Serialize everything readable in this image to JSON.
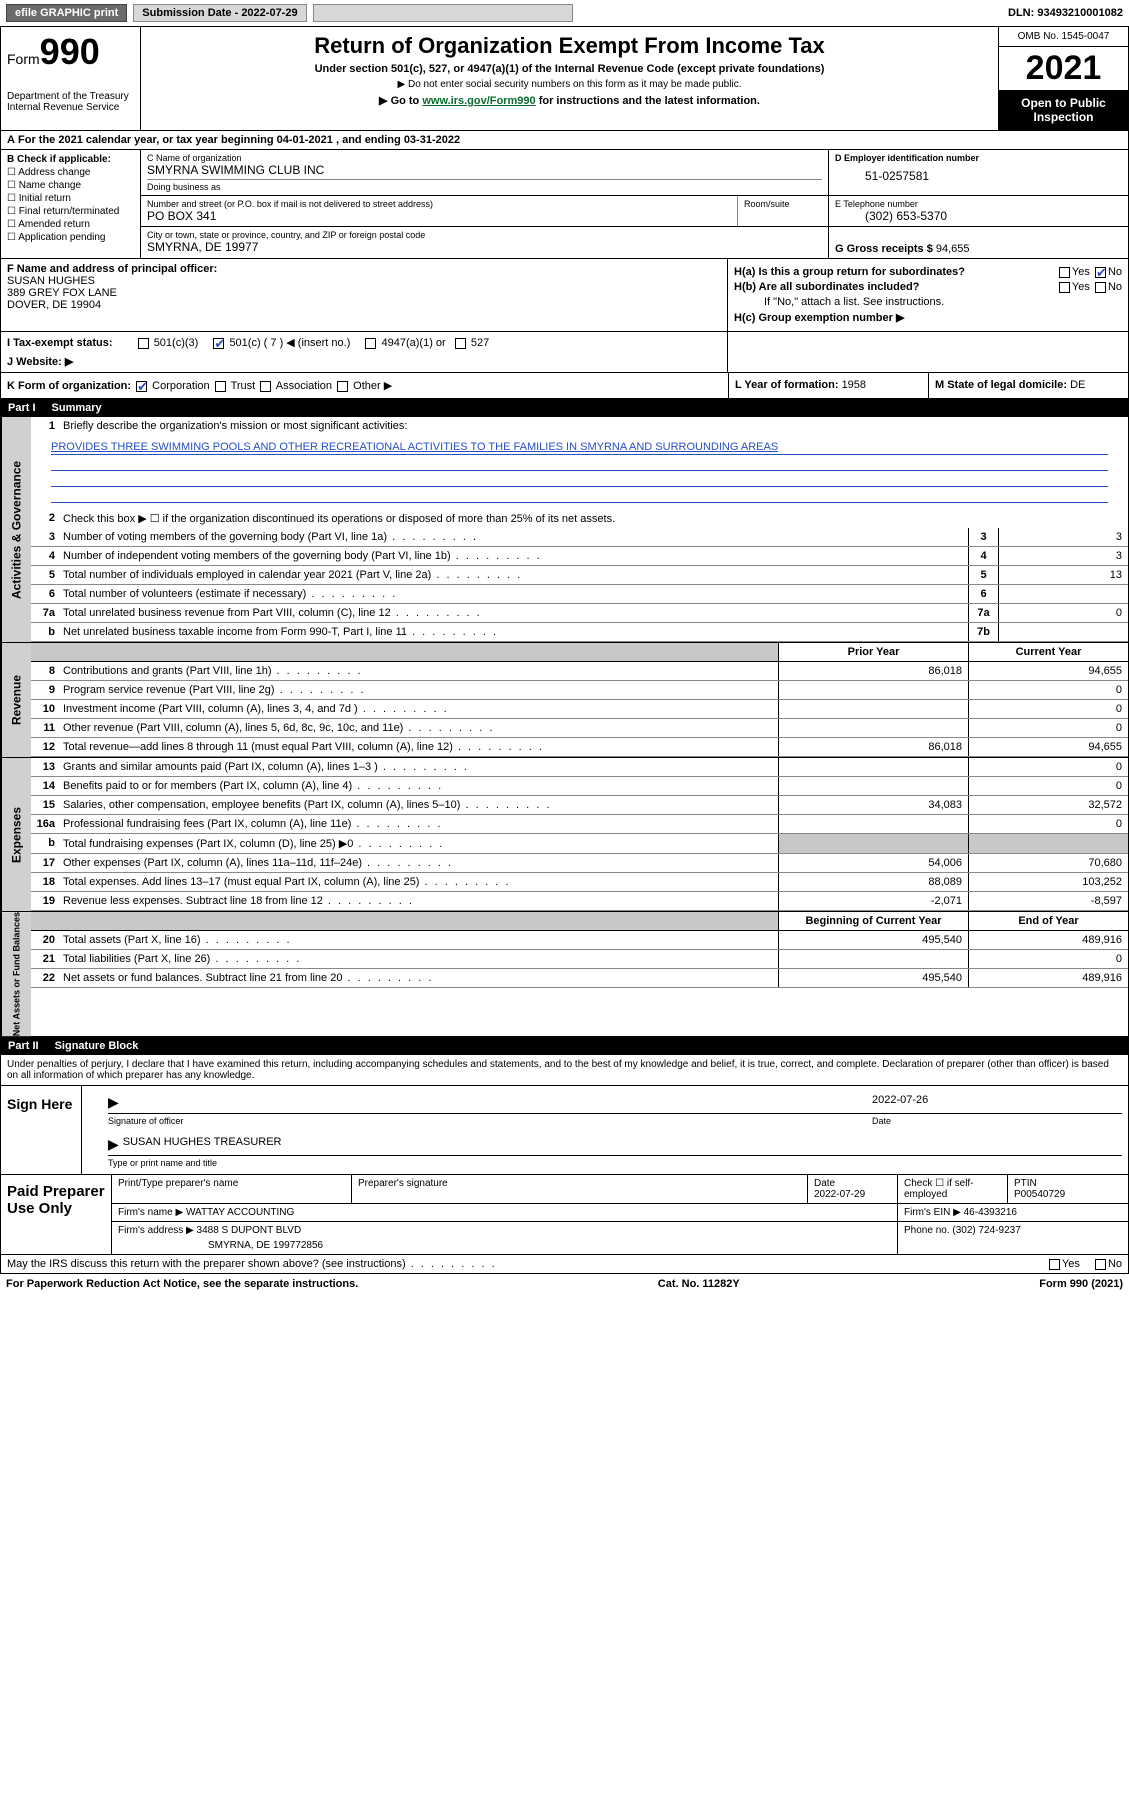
{
  "topbar": {
    "efile": "efile GRAPHIC print",
    "sub_label": "Submission Date - 2022-07-29",
    "dln": "DLN: 93493210001082"
  },
  "hdr": {
    "form": "Form",
    "formnum": "990",
    "dept": "Department of the Treasury",
    "irs": "Internal Revenue Service",
    "title": "Return of Organization Exempt From Income Tax",
    "sub": "Under section 501(c), 527, or 4947(a)(1) of the Internal Revenue Code (except private foundations)",
    "note1": "▶ Do not enter social security numbers on this form as it may be made public.",
    "note2_a": "▶ Go to ",
    "note2_link": "www.irs.gov/Form990",
    "note2_b": " for instructions and the latest information.",
    "omb": "OMB No. 1545-0047",
    "year": "2021",
    "open": "Open to Public Inspection"
  },
  "rowA": {
    "a": "A",
    "txt_a": " For the 2021 calendar year, or tax year beginning ",
    "begin": "04-01-2021",
    "txt_b": " , and ending ",
    "end": "03-31-2022"
  },
  "colB": {
    "hdr": "B Check if applicable:",
    "opts": [
      "Address change",
      "Name change",
      "Initial return",
      "Final return/terminated",
      "Amended return",
      "Application pending"
    ]
  },
  "colC": {
    "name_lbl": "C Name of organization",
    "name": "SMYRNA SWIMMING CLUB INC",
    "dba_lbl": "Doing business as",
    "dba": "",
    "addr_lbl": "Number and street (or P.O. box if mail is not delivered to street address)",
    "room_lbl": "Room/suite",
    "addr": "PO BOX 341",
    "city_lbl": "City or town, state or province, country, and ZIP or foreign postal code",
    "city": "SMYRNA, DE  19977"
  },
  "colD": {
    "ein_lbl": "D Employer identification number",
    "ein": "51-0257581",
    "tel_lbl": "E Telephone number",
    "tel": "(302) 653-5370",
    "gross_lbl": "G Gross receipts $ ",
    "gross": "94,655"
  },
  "rowF": {
    "lbl": "F  Name and address of principal officer:",
    "name": "SUSAN HUGHES",
    "addr1": "389 GREY FOX LANE",
    "addr2": "DOVER, DE  19904"
  },
  "rowH": {
    "a_lbl": "H(a)  Is this a group return for subordinates?",
    "yes": "Yes",
    "no": "No",
    "b_lbl": "H(b)  Are all subordinates included?",
    "b_note": "If \"No,\" attach a list. See instructions.",
    "c_lbl": "H(c)  Group exemption number ▶"
  },
  "rowI": {
    "lbl": "I  Tax-exempt status:",
    "o1": "501(c)(3)",
    "o2": "501(c) ( 7 ) ◀ (insert no.)",
    "o3": "4947(a)(1) or",
    "o4": "527"
  },
  "rowJ": {
    "lbl": "J  Website: ▶"
  },
  "rowK": {
    "lbl": "K Form of organization:",
    "o1": "Corporation",
    "o2": "Trust",
    "o3": "Association",
    "o4": "Other ▶",
    "l_lbl": "L Year of formation: ",
    "l_val": "1958",
    "m_lbl": "M State of legal domicile: ",
    "m_val": "DE"
  },
  "part1": {
    "num": "Part I",
    "title": "Summary"
  },
  "vtabs": {
    "gov": "Activities & Governance",
    "rev": "Revenue",
    "exp": "Expenses",
    "net": "Net Assets or Fund Balances"
  },
  "summary": {
    "l1_lbl": "Briefly describe the organization's mission or most significant activities:",
    "l1_txt": "PROVIDES THREE SWIMMING POOLS AND OTHER RECREATIONAL ACTIVITIES TO THE FAMILIES IN SMYRNA AND SURROUNDING AREAS",
    "l2": "Check this box ▶ ☐  if the organization discontinued its operations or disposed of more than 25% of its net assets.",
    "l3": "Number of voting members of the governing body (Part VI, line 1a)",
    "l4": "Number of independent voting members of the governing body (Part VI, line 1b)",
    "l5": "Total number of individuals employed in calendar year 2021 (Part V, line 2a)",
    "l6": "Total number of volunteers (estimate if necessary)",
    "l7a": "Total unrelated business revenue from Part VIII, column (C), line 12",
    "l7b": "Net unrelated business taxable income from Form 990-T, Part I, line 11",
    "v3": "3",
    "v4": "3",
    "v5": "13",
    "v6": "",
    "v7a": "0",
    "v7b": ""
  },
  "tbl": {
    "py": "Prior Year",
    "cy": "Current Year",
    "bcy": "Beginning of Current Year",
    "eoy": "End of Year",
    "rows": [
      {
        "n": "8",
        "t": "Contributions and grants (Part VIII, line 1h)",
        "p": "86,018",
        "c": "94,655"
      },
      {
        "n": "9",
        "t": "Program service revenue (Part VIII, line 2g)",
        "p": "",
        "c": "0"
      },
      {
        "n": "10",
        "t": "Investment income (Part VIII, column (A), lines 3, 4, and 7d )",
        "p": "",
        "c": "0"
      },
      {
        "n": "11",
        "t": "Other revenue (Part VIII, column (A), lines 5, 6d, 8c, 9c, 10c, and 11e)",
        "p": "",
        "c": "0"
      },
      {
        "n": "12",
        "t": "Total revenue—add lines 8 through 11 (must equal Part VIII, column (A), line 12)",
        "p": "86,018",
        "c": "94,655"
      }
    ],
    "exp": [
      {
        "n": "13",
        "t": "Grants and similar amounts paid (Part IX, column (A), lines 1–3 )",
        "p": "",
        "c": "0"
      },
      {
        "n": "14",
        "t": "Benefits paid to or for members (Part IX, column (A), line 4)",
        "p": "",
        "c": "0"
      },
      {
        "n": "15",
        "t": "Salaries, other compensation, employee benefits (Part IX, column (A), lines 5–10)",
        "p": "34,083",
        "c": "32,572"
      },
      {
        "n": "16a",
        "t": "Professional fundraising fees (Part IX, column (A), line 11e)",
        "p": "",
        "c": "0"
      },
      {
        "n": "b",
        "t": "Total fundraising expenses (Part IX, column (D), line 25) ▶0",
        "p": "GREY",
        "c": "GREY"
      },
      {
        "n": "17",
        "t": "Other expenses (Part IX, column (A), lines 11a–11d, 11f–24e)",
        "p": "54,006",
        "c": "70,680"
      },
      {
        "n": "18",
        "t": "Total expenses. Add lines 13–17 (must equal Part IX, column (A), line 25)",
        "p": "88,089",
        "c": "103,252"
      },
      {
        "n": "19",
        "t": "Revenue less expenses. Subtract line 18 from line 12",
        "p": "-2,071",
        "c": "-8,597"
      }
    ],
    "net": [
      {
        "n": "20",
        "t": "Total assets (Part X, line 16)",
        "p": "495,540",
        "c": "489,916"
      },
      {
        "n": "21",
        "t": "Total liabilities (Part X, line 26)",
        "p": "",
        "c": "0"
      },
      {
        "n": "22",
        "t": "Net assets or fund balances. Subtract line 21 from line 20",
        "p": "495,540",
        "c": "489,916"
      }
    ]
  },
  "part2": {
    "num": "Part II",
    "title": "Signature Block"
  },
  "sig": {
    "intro": "Under penalties of perjury, I declare that I have examined this return, including accompanying schedules and statements, and to the best of my knowledge and belief, it is true, correct, and complete. Declaration of preparer (other than officer) is based on all information of which preparer has any knowledge.",
    "here": "Sign Here",
    "off_lbl": "Signature of officer",
    "date_lbl": "Date",
    "date": "2022-07-26",
    "name": "SUSAN HUGHES TREASURER",
    "name_lbl": "Type or print name and title"
  },
  "paid": {
    "title": "Paid Preparer Use Only",
    "h1": "Print/Type preparer's name",
    "h2": "Preparer's signature",
    "h3": "Date",
    "h3v": "2022-07-29",
    "h4": "Check ☐ if self-employed",
    "h5": "PTIN",
    "h5v": "P00540729",
    "firm_lbl": "Firm's name    ▶ ",
    "firm": "WATTAY ACCOUNTING",
    "ein_lbl": "Firm's EIN ▶ ",
    "ein": "46-4393216",
    "addr_lbl": "Firm's address ▶ ",
    "addr": "3488 S DUPONT BLVD",
    "addr2": "SMYRNA, DE  199772856",
    "ph_lbl": "Phone no. ",
    "ph": "(302) 724-9237"
  },
  "footer": {
    "q": "May the IRS discuss this return with the preparer shown above? (see instructions)",
    "yes": "Yes",
    "no": "No",
    "pra": "For Paperwork Reduction Act Notice, see the separate instructions.",
    "cat": "Cat. No. 11282Y",
    "form": "Form 990 (2021)"
  }
}
